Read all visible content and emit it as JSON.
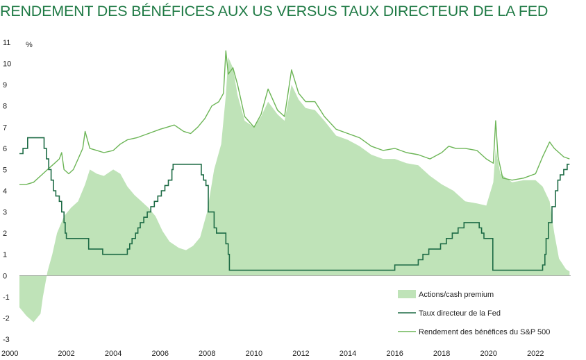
{
  "title": "RENDEMENT DES BÉNÉFICES AUX US VERSUS TAUX DIRECTEUR DE LA FED",
  "colors": {
    "premium_fill": "#bfe3b8",
    "fed_line": "#1d6b45",
    "earnings_line": "#6cb556",
    "title": "#1f7a45"
  },
  "chart_data": {
    "type": "area+line",
    "title": "RENDEMENT DES BÉNÉFICES AUX US VERSUS TAUX DIRECTEUR DE LA FED",
    "ylabel": "%",
    "ylim": [
      -3,
      11
    ],
    "xlim": [
      2000,
      2023.5
    ],
    "yticks": [
      "11",
      "10",
      "9",
      "8",
      "7",
      "6",
      "5",
      "4",
      "3",
      "2",
      "1",
      "0",
      "-1",
      "-2",
      "-3"
    ],
    "xticks": [
      "2000",
      "2002",
      "2004",
      "2006",
      "2008",
      "2010",
      "2012",
      "2014",
      "2016",
      "2018",
      "2020",
      "2022"
    ],
    "legend_position": "bottom-right",
    "grid": false,
    "series": [
      {
        "name": "Actions/cash premium",
        "kind": "area",
        "points": [
          [
            2000.0,
            -1.5
          ],
          [
            2000.3,
            -1.9
          ],
          [
            2000.6,
            -2.2
          ],
          [
            2000.9,
            -1.8
          ],
          [
            2001.0,
            -1.0
          ],
          [
            2001.2,
            0.2
          ],
          [
            2001.4,
            1.0
          ],
          [
            2001.6,
            2.0
          ],
          [
            2001.9,
            2.8
          ],
          [
            2002.2,
            3.2
          ],
          [
            2002.5,
            3.5
          ],
          [
            2002.8,
            4.3
          ],
          [
            2003.0,
            5.0
          ],
          [
            2003.3,
            4.8
          ],
          [
            2003.6,
            4.7
          ],
          [
            2004.0,
            5.0
          ],
          [
            2004.3,
            4.8
          ],
          [
            2004.6,
            4.2
          ],
          [
            2004.9,
            3.8
          ],
          [
            2005.2,
            3.5
          ],
          [
            2005.5,
            3.2
          ],
          [
            2005.8,
            2.8
          ],
          [
            2006.1,
            2.1
          ],
          [
            2006.4,
            1.6
          ],
          [
            2006.8,
            1.3
          ],
          [
            2007.1,
            1.2
          ],
          [
            2007.4,
            1.4
          ],
          [
            2007.7,
            1.8
          ],
          [
            2008.0,
            3.0
          ],
          [
            2008.3,
            5.0
          ],
          [
            2008.6,
            6.2
          ],
          [
            2008.8,
            8.5
          ],
          [
            2008.9,
            10.3
          ],
          [
            2009.1,
            9.8
          ],
          [
            2009.3,
            8.5
          ],
          [
            2009.6,
            7.3
          ],
          [
            2010.0,
            7.0
          ],
          [
            2010.3,
            7.5
          ],
          [
            2010.6,
            8.2
          ],
          [
            2011.0,
            7.6
          ],
          [
            2011.3,
            7.3
          ],
          [
            2011.6,
            9.0
          ],
          [
            2011.9,
            8.3
          ],
          [
            2012.2,
            7.9
          ],
          [
            2012.6,
            7.8
          ],
          [
            2013.0,
            7.3
          ],
          [
            2013.5,
            6.6
          ],
          [
            2014.0,
            6.4
          ],
          [
            2014.5,
            6.1
          ],
          [
            2015.0,
            5.7
          ],
          [
            2015.5,
            5.5
          ],
          [
            2016.0,
            5.5
          ],
          [
            2016.5,
            5.3
          ],
          [
            2017.0,
            5.2
          ],
          [
            2017.5,
            4.7
          ],
          [
            2018.0,
            4.3
          ],
          [
            2018.5,
            4.0
          ],
          [
            2019.0,
            3.5
          ],
          [
            2019.5,
            3.4
          ],
          [
            2019.9,
            3.3
          ],
          [
            2020.2,
            4.4
          ],
          [
            2020.3,
            6.0
          ],
          [
            2020.5,
            4.8
          ],
          [
            2021.0,
            4.4
          ],
          [
            2021.5,
            4.5
          ],
          [
            2022.0,
            4.5
          ],
          [
            2022.3,
            4.2
          ],
          [
            2022.6,
            3.5
          ],
          [
            2022.8,
            2.0
          ],
          [
            2023.0,
            0.8
          ],
          [
            2023.3,
            0.3
          ],
          [
            2023.45,
            0.2
          ]
        ]
      },
      {
        "name": "Taux directeur de la Fed",
        "kind": "step",
        "points": [
          [
            2000.0,
            5.75
          ],
          [
            2000.15,
            6.0
          ],
          [
            2000.35,
            6.5
          ],
          [
            2000.95,
            6.5
          ],
          [
            2001.05,
            6.0
          ],
          [
            2001.15,
            5.5
          ],
          [
            2001.25,
            5.0
          ],
          [
            2001.35,
            4.5
          ],
          [
            2001.45,
            4.0
          ],
          [
            2001.55,
            3.75
          ],
          [
            2001.7,
            3.5
          ],
          [
            2001.8,
            3.0
          ],
          [
            2001.9,
            2.5
          ],
          [
            2001.95,
            2.0
          ],
          [
            2002.0,
            1.75
          ],
          [
            2002.9,
            1.75
          ],
          [
            2002.95,
            1.25
          ],
          [
            2003.5,
            1.25
          ],
          [
            2003.55,
            1.0
          ],
          [
            2004.5,
            1.0
          ],
          [
            2004.6,
            1.25
          ],
          [
            2004.7,
            1.5
          ],
          [
            2004.8,
            1.75
          ],
          [
            2004.95,
            2.0
          ],
          [
            2005.05,
            2.25
          ],
          [
            2005.15,
            2.5
          ],
          [
            2005.3,
            2.75
          ],
          [
            2005.45,
            3.0
          ],
          [
            2005.6,
            3.25
          ],
          [
            2005.75,
            3.5
          ],
          [
            2005.9,
            3.75
          ],
          [
            2006.05,
            4.0
          ],
          [
            2006.2,
            4.25
          ],
          [
            2006.35,
            4.5
          ],
          [
            2006.5,
            5.0
          ],
          [
            2006.55,
            5.25
          ],
          [
            2007.7,
            5.25
          ],
          [
            2007.75,
            4.75
          ],
          [
            2007.85,
            4.5
          ],
          [
            2007.95,
            4.25
          ],
          [
            2008.05,
            3.0
          ],
          [
            2008.3,
            2.25
          ],
          [
            2008.4,
            2.0
          ],
          [
            2008.8,
            1.5
          ],
          [
            2008.9,
            1.0
          ],
          [
            2008.95,
            0.25
          ],
          [
            2015.95,
            0.25
          ],
          [
            2016.0,
            0.5
          ],
          [
            2016.95,
            0.5
          ],
          [
            2017.0,
            0.75
          ],
          [
            2017.2,
            1.0
          ],
          [
            2017.45,
            1.25
          ],
          [
            2017.95,
            1.5
          ],
          [
            2018.2,
            1.75
          ],
          [
            2018.45,
            2.0
          ],
          [
            2018.7,
            2.25
          ],
          [
            2018.95,
            2.5
          ],
          [
            2019.55,
            2.5
          ],
          [
            2019.6,
            2.25
          ],
          [
            2019.7,
            2.0
          ],
          [
            2019.8,
            1.75
          ],
          [
            2020.15,
            1.75
          ],
          [
            2020.18,
            0.25
          ],
          [
            2022.2,
            0.25
          ],
          [
            2022.3,
            0.5
          ],
          [
            2022.4,
            1.0
          ],
          [
            2022.45,
            1.75
          ],
          [
            2022.55,
            2.5
          ],
          [
            2022.7,
            3.25
          ],
          [
            2022.85,
            4.0
          ],
          [
            2022.95,
            4.5
          ],
          [
            2023.05,
            4.75
          ],
          [
            2023.2,
            5.0
          ],
          [
            2023.35,
            5.25
          ]
        ]
      },
      {
        "name": "Rendement des bénéfices du S&P 500",
        "kind": "line",
        "points": [
          [
            2000.0,
            4.3
          ],
          [
            2000.3,
            4.3
          ],
          [
            2000.6,
            4.4
          ],
          [
            2000.9,
            4.7
          ],
          [
            2001.2,
            5.0
          ],
          [
            2001.5,
            5.3
          ],
          [
            2001.7,
            5.5
          ],
          [
            2001.8,
            5.8
          ],
          [
            2001.9,
            5.0
          ],
          [
            2002.1,
            4.8
          ],
          [
            2002.3,
            5.0
          ],
          [
            2002.5,
            5.5
          ],
          [
            2002.7,
            6.0
          ],
          [
            2002.8,
            6.8
          ],
          [
            2003.0,
            6.0
          ],
          [
            2003.3,
            5.9
          ],
          [
            2003.6,
            5.8
          ],
          [
            2004.0,
            5.9
          ],
          [
            2004.3,
            6.2
          ],
          [
            2004.6,
            6.4
          ],
          [
            2005.0,
            6.5
          ],
          [
            2005.5,
            6.7
          ],
          [
            2006.0,
            6.9
          ],
          [
            2006.3,
            7.0
          ],
          [
            2006.6,
            7.1
          ],
          [
            2007.0,
            6.8
          ],
          [
            2007.3,
            6.7
          ],
          [
            2007.6,
            7.0
          ],
          [
            2007.9,
            7.4
          ],
          [
            2008.2,
            8.0
          ],
          [
            2008.5,
            8.2
          ],
          [
            2008.7,
            8.6
          ],
          [
            2008.8,
            10.6
          ],
          [
            2008.9,
            9.5
          ],
          [
            2009.1,
            9.8
          ],
          [
            2009.3,
            9.0
          ],
          [
            2009.6,
            7.5
          ],
          [
            2010.0,
            7.0
          ],
          [
            2010.3,
            7.6
          ],
          [
            2010.6,
            8.8
          ],
          [
            2011.0,
            7.8
          ],
          [
            2011.3,
            7.5
          ],
          [
            2011.6,
            9.7
          ],
          [
            2011.9,
            8.6
          ],
          [
            2012.2,
            8.2
          ],
          [
            2012.6,
            8.2
          ],
          [
            2013.0,
            7.5
          ],
          [
            2013.5,
            6.9
          ],
          [
            2014.0,
            6.7
          ],
          [
            2014.5,
            6.5
          ],
          [
            2015.0,
            6.1
          ],
          [
            2015.5,
            5.9
          ],
          [
            2016.0,
            6.0
          ],
          [
            2016.5,
            5.8
          ],
          [
            2017.0,
            5.7
          ],
          [
            2017.5,
            5.5
          ],
          [
            2018.0,
            5.8
          ],
          [
            2018.3,
            6.1
          ],
          [
            2018.6,
            6.0
          ],
          [
            2019.0,
            6.0
          ],
          [
            2019.5,
            5.9
          ],
          [
            2019.9,
            5.5
          ],
          [
            2020.2,
            5.3
          ],
          [
            2020.3,
            7.3
          ],
          [
            2020.4,
            5.6
          ],
          [
            2020.6,
            4.6
          ],
          [
            2021.0,
            4.5
          ],
          [
            2021.5,
            4.6
          ],
          [
            2022.0,
            4.8
          ],
          [
            2022.3,
            5.6
          ],
          [
            2022.6,
            6.3
          ],
          [
            2022.8,
            6.0
          ],
          [
            2023.0,
            5.8
          ],
          [
            2023.2,
            5.6
          ],
          [
            2023.45,
            5.5
          ]
        ]
      }
    ]
  }
}
